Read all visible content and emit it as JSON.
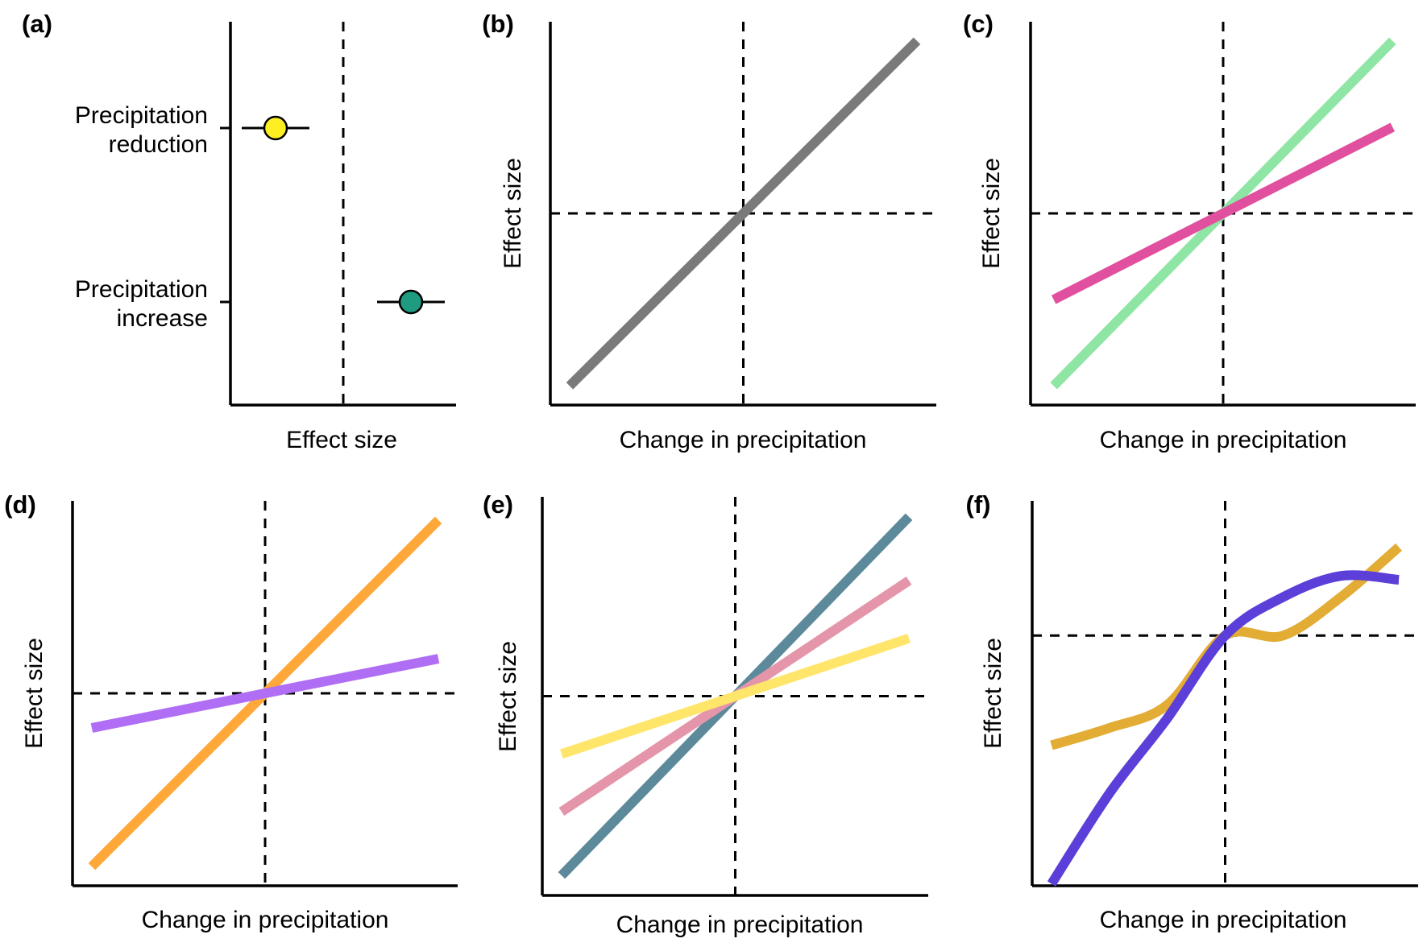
{
  "figure": {
    "panels": [
      {
        "id": "a",
        "label": "(a)",
        "xlabel": "Effect size",
        "ylabel": ""
      },
      {
        "id": "b",
        "label": "(b)",
        "xlabel": "Change in precipitation",
        "ylabel": "Effect size"
      },
      {
        "id": "c",
        "label": "(c)",
        "xlabel": "Change in precipitation",
        "ylabel": "Effect size"
      },
      {
        "id": "d",
        "label": "(d)",
        "xlabel": "Change in precipitation",
        "ylabel": "Effect size"
      },
      {
        "id": "e",
        "label": "(e)",
        "xlabel": "Change in precipitation",
        "ylabel": "Effect size"
      },
      {
        "id": "f",
        "label": "(f)",
        "xlabel": "Change in precipitation",
        "ylabel": "Effect size"
      }
    ]
  },
  "chart_data": [
    {
      "panel": "a",
      "type": "scatter",
      "xlabel": "Effect size",
      "ylabel": "",
      "xlim": [
        -1,
        1
      ],
      "reference_line_x": 0,
      "categories": [
        {
          "label_lines": [
            "Precipitation",
            "reduction"
          ],
          "estimate": -0.6,
          "ci": [
            -0.9,
            -0.3
          ],
          "color": "#ffee22"
        },
        {
          "label_lines": [
            "Precipitation",
            "increase"
          ],
          "estimate": 0.6,
          "ci": [
            0.3,
            0.9
          ],
          "color": "#1e9b80"
        }
      ]
    },
    {
      "panel": "b",
      "type": "line",
      "xlabel": "Change in precipitation",
      "ylabel": "Effect size",
      "xlim": [
        -1,
        1
      ],
      "ylim": [
        -1,
        1
      ],
      "ref_x": 0,
      "ref_y": 0,
      "series": [
        {
          "color": "#7a7a7a",
          "x": [
            -0.9,
            0.9
          ],
          "y": [
            -0.9,
            0.9
          ]
        }
      ]
    },
    {
      "panel": "c",
      "type": "line",
      "xlabel": "Change in precipitation",
      "ylabel": "Effect size",
      "xlim": [
        -1,
        1
      ],
      "ylim": [
        -1,
        1
      ],
      "ref_x": 0,
      "ref_y": 0,
      "series": [
        {
          "color": "#8fe6a4",
          "x": [
            -0.88,
            0.88
          ],
          "y": [
            -0.9,
            0.9
          ]
        },
        {
          "color": "#e0509f",
          "x": [
            -0.88,
            0.88
          ],
          "y": [
            -0.45,
            0.45
          ]
        }
      ]
    },
    {
      "panel": "d",
      "type": "line",
      "xlabel": "Change in precipitation",
      "ylabel": "Effect size",
      "xlim": [
        -1,
        1
      ],
      "ylim": [
        -1,
        1
      ],
      "ref_x": 0,
      "ref_y": 0,
      "series": [
        {
          "color": "#ffa83a",
          "x": [
            -0.9,
            0.9
          ],
          "y": [
            -0.9,
            0.9
          ]
        },
        {
          "color": "#b06ef5",
          "x": [
            -0.9,
            0.9
          ],
          "y": [
            -0.18,
            0.18
          ]
        }
      ]
    },
    {
      "panel": "e",
      "type": "line",
      "xlabel": "Change in precipitation",
      "ylabel": "Effect size",
      "xlim": [
        -1,
        1
      ],
      "ylim": [
        -1,
        1
      ],
      "ref_x": 0,
      "ref_y": 0,
      "series": [
        {
          "color": "#5c8a9b",
          "x": [
            -0.9,
            0.9
          ],
          "y": [
            -0.9,
            0.9
          ]
        },
        {
          "color": "#e495a9",
          "x": [
            -0.9,
            0.9
          ],
          "y": [
            -0.58,
            0.58
          ]
        },
        {
          "color": "#ffe66b",
          "x": [
            -0.9,
            0.9
          ],
          "y": [
            -0.29,
            0.29
          ]
        }
      ]
    },
    {
      "panel": "f",
      "type": "line",
      "xlabel": "Change in precipitation",
      "ylabel": "Effect size",
      "xlim": [
        -1,
        1
      ],
      "ylim": [
        -1,
        1
      ],
      "ref_x": 0,
      "ref_y": 0.3,
      "series": [
        {
          "color": "#e2ac35",
          "x": [
            -0.9,
            -0.6,
            -0.3,
            0,
            0.3,
            0.6,
            0.9
          ],
          "y": [
            -0.27,
            -0.18,
            -0.06,
            0.3,
            0.3,
            0.5,
            0.76
          ]
        },
        {
          "color": "#5b3fd8",
          "x": [
            -0.9,
            -0.6,
            -0.3,
            0,
            0.3,
            0.6,
            0.9
          ],
          "y": [
            -0.99,
            -0.52,
            -0.13,
            0.3,
            0.5,
            0.61,
            0.59
          ]
        }
      ]
    }
  ]
}
